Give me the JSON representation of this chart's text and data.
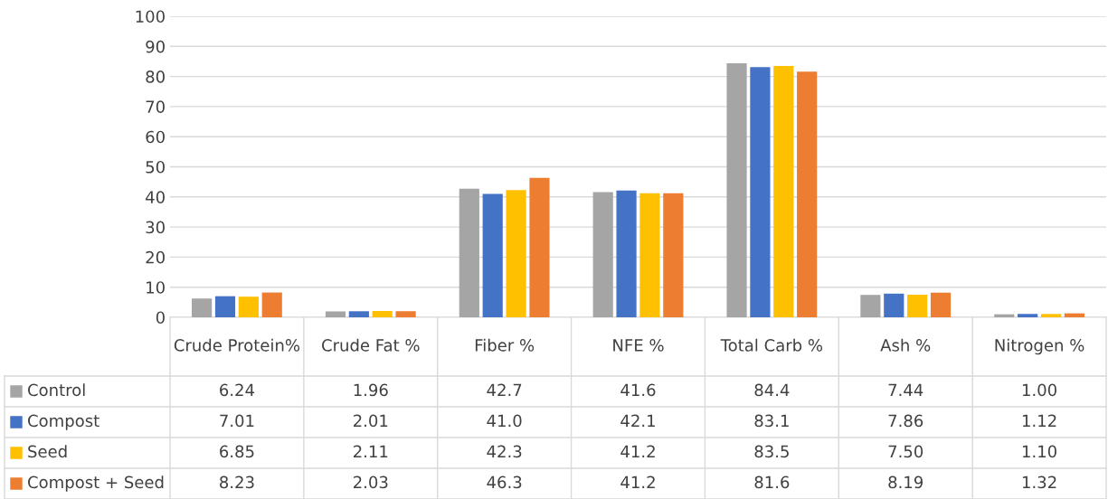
{
  "chart_data": {
    "type": "bar",
    "categories": [
      "Crude Protein%",
      "Crude Fat %",
      "Fiber %",
      "NFE %",
      "Total Carb %",
      "Ash %",
      "Nitrogen %"
    ],
    "series": [
      {
        "name": "Control",
        "color": "#a5a5a5",
        "values": [
          6.24,
          1.96,
          42.7,
          41.6,
          84.4,
          7.44,
          1.0
        ],
        "value_labels": [
          "6.24",
          "1.96",
          "42.7",
          "41.6",
          "84.4",
          "7.44",
          "1.00"
        ]
      },
      {
        "name": "Compost",
        "color": "#4472c4",
        "values": [
          7.01,
          2.01,
          41.0,
          42.1,
          83.1,
          7.86,
          1.12
        ],
        "value_labels": [
          "7.01",
          "2.01",
          "41.0",
          "42.1",
          "83.1",
          "7.86",
          "1.12"
        ]
      },
      {
        "name": "Seed",
        "color": "#ffc000",
        "values": [
          6.85,
          2.11,
          42.3,
          41.2,
          83.5,
          7.5,
          1.1
        ],
        "value_labels": [
          "6.85",
          "2.11",
          "42.3",
          "41.2",
          "83.5",
          "7.50",
          "1.10"
        ]
      },
      {
        "name": "Compost + Seed",
        "color": "#ed7d31",
        "values": [
          8.23,
          2.03,
          46.3,
          41.2,
          81.6,
          8.19,
          1.32
        ],
        "value_labels": [
          "8.23",
          "2.03",
          "46.3",
          "41.2",
          "81.6",
          "8.19",
          "1.32"
        ]
      }
    ],
    "ylim": [
      0,
      100
    ],
    "yticks": [
      0,
      10,
      20,
      30,
      40,
      50,
      60,
      70,
      80,
      90,
      100
    ],
    "grid": "y",
    "legend": "bottom"
  }
}
